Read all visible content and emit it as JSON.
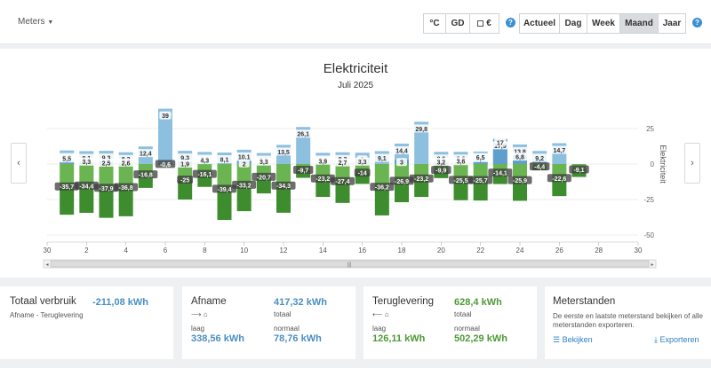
{
  "toolbar": {
    "meters_label": "Meters",
    "unit_buttons": [
      "°C",
      "GD",
      "€"
    ],
    "period_buttons": [
      "Actueel",
      "Dag",
      "Week",
      "Maand",
      "Jaar"
    ],
    "active_period": "Maand",
    "help": "?"
  },
  "nav": {
    "prev": "‹",
    "next": "›"
  },
  "chart_data": {
    "type": "bar",
    "title": "Elektriciteit",
    "subtitle": "Juli 2025",
    "ylabel": "Elektriciteit",
    "ylim": [
      -50,
      50
    ],
    "y_ticks": [
      25,
      0,
      -25,
      -50
    ],
    "x_ticks": [
      "30",
      "2",
      "4",
      "6",
      "8",
      "10",
      "12",
      "14",
      "16",
      "18",
      "20",
      "22",
      "24",
      "26",
      "28",
      "30"
    ],
    "x_tick_positions": [
      0,
      2,
      4,
      6,
      8,
      10,
      12,
      14,
      16,
      18,
      20,
      22,
      24,
      26,
      28,
      30
    ],
    "days": [
      1,
      2,
      3,
      4,
      5,
      6,
      7,
      8,
      9,
      10,
      11,
      12,
      13,
      14,
      15,
      16,
      17,
      18,
      19,
      20,
      21,
      22,
      23,
      24,
      25,
      26,
      27
    ],
    "series": [
      {
        "name": "normaal afname",
        "color": "#8dbfdf",
        "values": [
          9.6,
          9.1,
          9.3,
          8.3,
          12.4,
          39,
          9.3,
          8.5,
          8.1,
          10.1,
          7.8,
          13.5,
          26.1,
          7.9,
          8.3,
          8,
          9.1,
          14.4,
          29.8,
          8.6,
          8.6,
          8.8,
          17.9,
          13.8,
          9.2,
          14.7,
          0
        ]
      },
      {
        "name": "laag afname",
        "color": "#5f9fcc",
        "values": [
          5.5,
          3.3,
          2.5,
          2.6,
          0,
          0,
          1.9,
          4.3,
          0,
          2,
          3.3,
          0,
          0,
          3.9,
          2.7,
          3.3,
          0,
          3,
          0,
          3.2,
          3.6,
          6.5,
          17,
          6.8,
          0,
          0,
          0
        ]
      },
      {
        "name": "normaal teruglevering",
        "color": "#6ab552",
        "values": [
          -35.7,
          -34.4,
          -37.9,
          -36.8,
          -16.8,
          -0.6,
          -25,
          -16.1,
          -39.4,
          -33.2,
          -20.7,
          -34.3,
          -9.7,
          -23.2,
          -27.4,
          -14,
          -36.2,
          -26.9,
          -23.2,
          -9.9,
          -25.5,
          -25.7,
          -14.1,
          -25.9,
          -4.4,
          -22.6,
          -9.1
        ]
      },
      {
        "name": "laag teruglevering",
        "color": "#3d8c2e",
        "values": [
          0,
          0,
          0,
          0,
          0,
          0,
          0,
          0,
          0,
          0,
          0,
          0,
          0,
          0,
          0,
          0,
          0,
          0,
          0,
          0,
          0,
          0,
          0,
          0,
          0,
          0,
          0
        ]
      }
    ],
    "net_labels": [
      9.6,
      9.1,
      9.3,
      8.3,
      12.4,
      39,
      9.3,
      8.5,
      8.1,
      10.1,
      7.8,
      13.5,
      26.1,
      7.9,
      8.3,
      8,
      9.1,
      14.4,
      29.8,
      8.6,
      8.6,
      8.8,
      17.9,
      13.8,
      9.2,
      14.7,
      0
    ]
  },
  "cards": {
    "totaal": {
      "title": "Totaal verbruik",
      "subtitle": "Afname - Teruglevering",
      "value": "-211,08 kWh"
    },
    "afname": {
      "title": "Afname",
      "total_value": "417,32 kWh",
      "total_label": "totaal",
      "low_label": "laag",
      "low_value": "338,56 kWh",
      "normal_label": "normaal",
      "normal_value": "78,76 kWh"
    },
    "teruglevering": {
      "title": "Teruglevering",
      "total_value": "628,4 kWh",
      "total_label": "totaal",
      "low_label": "laag",
      "low_value": "126,11 kWh",
      "normal_label": "normaal",
      "normal_value": "502,29 kWh"
    },
    "meterstanden": {
      "title": "Meterstanden",
      "text": "De eerste en laatste meterstand bekijken of alle meterstanden exporteren.",
      "view_label": "Bekijken",
      "export_label": "Exporteren"
    }
  }
}
